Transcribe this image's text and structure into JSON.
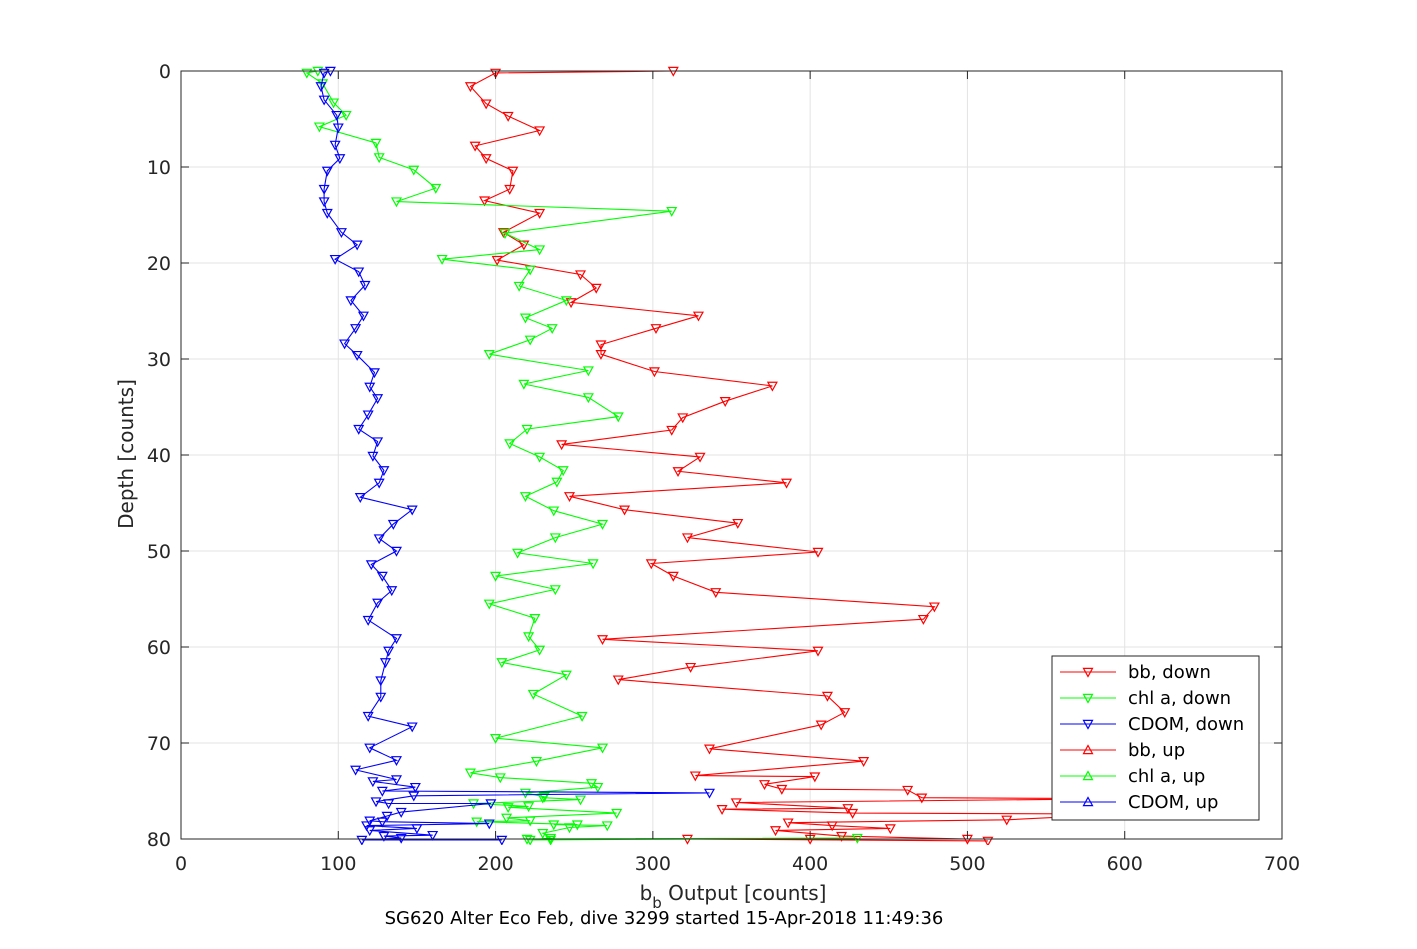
{
  "chart_data": {
    "type": "line",
    "xlabel": "b_b Output [counts]",
    "xlabel_main": "b",
    "xlabel_sub": "b",
    "xlabel_rest": " Output [counts]",
    "ylabel": "Depth [counts]",
    "caption": "SG620 Alter Eco Feb, dive 3299 started 15-Apr-2018 11:49:36",
    "xlim": [
      0,
      700
    ],
    "ylim": [
      0,
      80
    ],
    "y_reversed": true,
    "grid": true,
    "xticks": [
      0,
      100,
      200,
      300,
      400,
      500,
      600,
      700
    ],
    "xtick_labels": [
      "0",
      "100",
      "200",
      "300",
      "400",
      "500",
      "600",
      "700"
    ],
    "yticks": [
      0,
      10,
      20,
      30,
      40,
      50,
      60,
      70,
      80
    ],
    "ytick_labels": [
      "0",
      "10",
      "20",
      "30",
      "40",
      "50",
      "60",
      "70",
      "80"
    ],
    "legend_position": "bottom-right",
    "series": [
      {
        "name": "bb, down",
        "color": "#ff0000",
        "marker": "triangle-down",
        "points": [
          [
            313,
            0
          ],
          [
            200,
            0.2
          ],
          [
            184,
            1.6
          ],
          [
            194,
            3.4
          ],
          [
            208,
            4.7
          ],
          [
            228,
            6.2
          ],
          [
            187,
            7.8
          ],
          [
            194,
            9.1
          ],
          [
            211,
            10.4
          ],
          [
            209,
            12.3
          ],
          [
            193,
            13.5
          ],
          [
            228,
            14.8
          ],
          [
            205,
            16.8
          ],
          [
            218,
            18.1
          ],
          [
            201,
            19.7
          ],
          [
            254,
            21.2
          ],
          [
            264,
            22.6
          ],
          [
            248,
            24.1
          ],
          [
            329,
            25.5
          ],
          [
            302,
            26.8
          ],
          [
            267,
            28.5
          ],
          [
            267,
            29.5
          ],
          [
            301,
            31.3
          ],
          [
            376,
            32.8
          ],
          [
            346,
            34.4
          ],
          [
            319,
            36.1
          ],
          [
            312,
            37.4
          ],
          [
            242,
            38.9
          ],
          [
            330,
            40.2
          ],
          [
            316,
            41.7
          ],
          [
            385,
            42.9
          ],
          [
            247,
            44.3
          ],
          [
            282,
            45.7
          ],
          [
            354,
            47.1
          ],
          [
            322,
            48.6
          ],
          [
            405,
            50.1
          ],
          [
            299,
            51.3
          ],
          [
            313,
            52.6
          ],
          [
            340,
            54.3
          ],
          [
            479,
            55.8
          ],
          [
            472,
            57.1
          ],
          [
            268,
            59.2
          ],
          [
            405,
            60.4
          ],
          [
            324,
            62.1
          ],
          [
            278,
            63.4
          ],
          [
            411,
            65.1
          ],
          [
            422,
            66.8
          ],
          [
            407,
            68.1
          ],
          [
            336,
            70.6
          ],
          [
            434,
            71.9
          ],
          [
            327,
            73.4
          ],
          [
            403,
            73.5
          ],
          [
            371,
            74.3
          ],
          [
            382,
            74.8
          ],
          [
            462,
            74.9
          ],
          [
            471,
            75.7
          ],
          [
            600,
            75.8
          ],
          [
            353,
            76.2
          ],
          [
            424,
            76.8
          ],
          [
            344,
            76.9
          ],
          [
            427,
            77.3
          ],
          [
            600,
            77.4
          ],
          [
            525,
            78.0
          ],
          [
            386,
            78.3
          ],
          [
            414,
            78.6
          ],
          [
            451,
            78.9
          ],
          [
            378,
            79.1
          ],
          [
            420,
            79.7
          ],
          [
            500,
            80.0
          ],
          [
            400,
            80.0
          ],
          [
            322,
            80.0
          ],
          [
            513,
            80.2
          ]
        ]
      },
      {
        "name": "chl a, down",
        "color": "#00ff00",
        "marker": "triangle-down",
        "points": [
          [
            87,
            0
          ],
          [
            80,
            0.2
          ],
          [
            90,
            1.3
          ],
          [
            97,
            3.3
          ],
          [
            105,
            4.6
          ],
          [
            88,
            5.8
          ],
          [
            124,
            7.5
          ],
          [
            126,
            9.0
          ],
          [
            148,
            10.3
          ],
          [
            162,
            12.2
          ],
          [
            137,
            13.6
          ],
          [
            312,
            14.6
          ],
          [
            206,
            16.9
          ],
          [
            228,
            18.6
          ],
          [
            166,
            19.6
          ],
          [
            222,
            20.7
          ],
          [
            215,
            22.4
          ],
          [
            245,
            23.9
          ],
          [
            219,
            25.7
          ],
          [
            236,
            26.8
          ],
          [
            222,
            28.0
          ],
          [
            196,
            29.5
          ],
          [
            259,
            31.2
          ],
          [
            218,
            32.6
          ],
          [
            259,
            34.0
          ],
          [
            278,
            36.0
          ],
          [
            220,
            37.3
          ],
          [
            209,
            38.8
          ],
          [
            228,
            40.2
          ],
          [
            243,
            41.6
          ],
          [
            239,
            42.8
          ],
          [
            219,
            44.3
          ],
          [
            237,
            45.8
          ],
          [
            268,
            47.2
          ],
          [
            238,
            48.6
          ],
          [
            214,
            50.2
          ],
          [
            262,
            51.3
          ],
          [
            200,
            52.6
          ],
          [
            238,
            54.0
          ],
          [
            196,
            55.5
          ],
          [
            225,
            57.0
          ],
          [
            221,
            58.9
          ],
          [
            228,
            60.3
          ],
          [
            204,
            61.6
          ],
          [
            245,
            62.9
          ],
          [
            224,
            64.9
          ],
          [
            255,
            67.2
          ],
          [
            200,
            69.5
          ],
          [
            268,
            70.5
          ],
          [
            226,
            71.9
          ],
          [
            184,
            73.1
          ],
          [
            203,
            73.6
          ],
          [
            261,
            74.2
          ],
          [
            265,
            74.6
          ],
          [
            219,
            75.2
          ],
          [
            231,
            75.6
          ],
          [
            230,
            75.7
          ],
          [
            254,
            75.9
          ],
          [
            186,
            76.3
          ],
          [
            221,
            76.6
          ],
          [
            208,
            76.7
          ],
          [
            277,
            77.3
          ],
          [
            207,
            77.8
          ],
          [
            222,
            78.1
          ],
          [
            188,
            78.2
          ],
          [
            252,
            78.5
          ],
          [
            237,
            78.5
          ],
          [
            271,
            78.6
          ],
          [
            247,
            78.8
          ],
          [
            230,
            79.4
          ],
          [
            235,
            79.9
          ],
          [
            222,
            80.1
          ],
          [
            430,
            79.9
          ],
          [
            220,
            80.0
          ],
          [
            235,
            80.1
          ]
        ]
      },
      {
        "name": "CDOM, down",
        "color": "#0000ff",
        "marker": "triangle-down",
        "points": [
          [
            95,
            0
          ],
          [
            91,
            0.2
          ],
          [
            89,
            1.6
          ],
          [
            91,
            3.0
          ],
          [
            99,
            4.6
          ],
          [
            100,
            5.9
          ],
          [
            98,
            7.7
          ],
          [
            101,
            9.1
          ],
          [
            93,
            10.4
          ],
          [
            91,
            12.3
          ],
          [
            91,
            13.6
          ],
          [
            93,
            14.8
          ],
          [
            102,
            16.8
          ],
          [
            112,
            18.1
          ],
          [
            98,
            19.6
          ],
          [
            113,
            20.9
          ],
          [
            117,
            22.3
          ],
          [
            108,
            23.9
          ],
          [
            116,
            25.5
          ],
          [
            111,
            26.8
          ],
          [
            104,
            28.4
          ],
          [
            112,
            29.6
          ],
          [
            123,
            31.4
          ],
          [
            120,
            32.9
          ],
          [
            125,
            34.1
          ],
          [
            119,
            35.8
          ],
          [
            113,
            37.3
          ],
          [
            125,
            38.6
          ],
          [
            122,
            40.1
          ],
          [
            129,
            41.6
          ],
          [
            126,
            42.9
          ],
          [
            114,
            44.4
          ],
          [
            147,
            45.7
          ],
          [
            135,
            47.2
          ],
          [
            126,
            48.7
          ],
          [
            137,
            50.0
          ],
          [
            121,
            51.4
          ],
          [
            128,
            52.6
          ],
          [
            134,
            54.1
          ],
          [
            125,
            55.4
          ],
          [
            119,
            57.2
          ],
          [
            137,
            59.1
          ],
          [
            132,
            60.4
          ],
          [
            130,
            61.6
          ],
          [
            127,
            63.5
          ],
          [
            127,
            65.2
          ],
          [
            119,
            67.2
          ],
          [
            147,
            68.3
          ],
          [
            120,
            70.5
          ],
          [
            137,
            71.8
          ],
          [
            111,
            72.8
          ],
          [
            137,
            73.8
          ],
          [
            122,
            74.0
          ],
          [
            149,
            74.6
          ],
          [
            128,
            75.0
          ],
          [
            336,
            75.2
          ],
          [
            148,
            75.5
          ],
          [
            124,
            76.1
          ],
          [
            132,
            76.3
          ],
          [
            197,
            76.3
          ],
          [
            140,
            77.2
          ],
          [
            131,
            77.6
          ],
          [
            120,
            78.1
          ],
          [
            128,
            78.2
          ],
          [
            196,
            78.4
          ],
          [
            118,
            78.6
          ],
          [
            150,
            78.9
          ],
          [
            120,
            79.1
          ],
          [
            160,
            79.6
          ],
          [
            129,
            79.7
          ],
          [
            140,
            79.9
          ],
          [
            115,
            80.1
          ],
          [
            204,
            80.1
          ]
        ]
      },
      {
        "name": "bb, up",
        "color": "#ff0000",
        "marker": "triangle-up",
        "points": [],
        "note_hidden": true
      },
      {
        "name": "chl a, up",
        "color": "#00ff00",
        "marker": "triangle-up",
        "points": []
      },
      {
        "name": "CDOM, up",
        "color": "#0000ff",
        "marker": "triangle-up",
        "points": []
      }
    ]
  }
}
